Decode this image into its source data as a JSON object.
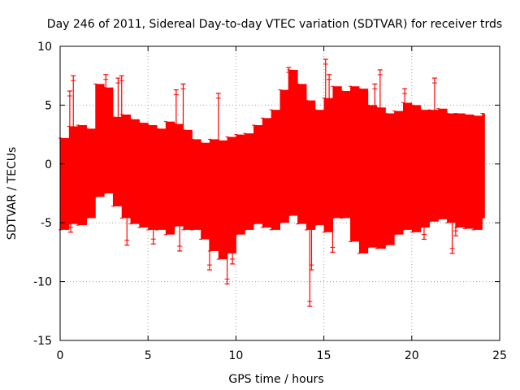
{
  "chart_data": {
    "type": "scatter",
    "title": "Day 246 of 2011, Sidereal Day-to-day VTEC variation (SDTVAR) for receiver trds",
    "xlabel": "GPS time / hours",
    "ylabel": "SDTVAR / TECUs",
    "xlim": [
      0,
      25
    ],
    "ylim": [
      -15,
      10
    ],
    "xticks": [
      0,
      5,
      10,
      15,
      20,
      25
    ],
    "yticks": [
      -15,
      -10,
      -5,
      0,
      5,
      10
    ],
    "grid": true,
    "series_color": "#ff0000",
    "series": [
      {
        "name": "SDTVAR",
        "marker": "error-bar",
        "x": [
          0.0,
          0.5,
          1.0,
          1.5,
          2.0,
          2.5,
          3.0,
          3.5,
          4.0,
          4.5,
          5.0,
          5.5,
          6.0,
          6.5,
          7.0,
          7.5,
          8.0,
          8.5,
          9.0,
          9.5,
          10.0,
          10.5,
          11.0,
          11.5,
          12.0,
          12.5,
          13.0,
          13.5,
          14.0,
          14.5,
          15.0,
          15.5,
          16.0,
          16.5,
          17.0,
          17.5,
          18.0,
          18.5,
          19.0,
          19.5,
          20.0,
          20.5,
          21.0,
          21.5,
          22.0,
          22.5,
          23.0,
          23.5,
          24.0
        ],
        "upper": [
          2.2,
          3.2,
          3.3,
          3.0,
          6.8,
          6.5,
          4.0,
          4.2,
          3.8,
          3.5,
          3.3,
          3.0,
          3.6,
          3.4,
          2.9,
          2.1,
          1.8,
          2.1,
          2.0,
          2.3,
          2.5,
          2.6,
          3.3,
          3.9,
          4.6,
          6.3,
          8.0,
          6.8,
          5.4,
          4.6,
          5.6,
          6.6,
          6.2,
          6.6,
          6.4,
          5.0,
          4.8,
          4.3,
          4.5,
          5.2,
          5.0,
          4.6,
          4.6,
          4.7,
          4.3,
          4.3,
          4.2,
          4.1,
          4.3
        ],
        "lower": [
          -5.6,
          -5.1,
          -5.2,
          -4.6,
          -2.8,
          -2.5,
          -3.6,
          -4.6,
          -5.1,
          -5.4,
          -5.6,
          -5.6,
          -6.0,
          -5.3,
          -5.6,
          -5.6,
          -6.4,
          -7.4,
          -8.1,
          -7.6,
          -6.0,
          -5.6,
          -5.1,
          -5.4,
          -5.6,
          -5.0,
          -4.4,
          -5.1,
          -5.6,
          -5.2,
          -5.8,
          -4.6,
          -4.6,
          -6.6,
          -7.6,
          -7.1,
          -7.2,
          -6.9,
          -6.0,
          -5.6,
          -5.8,
          -5.4,
          -4.9,
          -4.7,
          -5.0,
          -5.4,
          -5.5,
          -5.6,
          -4.6
        ],
        "spikes": [
          {
            "x": 0.55,
            "y": 6.2
          },
          {
            "x": 0.6,
            "y": -5.8
          },
          {
            "x": 0.75,
            "y": 7.5
          },
          {
            "x": 2.6,
            "y": 7.6
          },
          {
            "x": 3.3,
            "y": 7.3
          },
          {
            "x": 3.5,
            "y": 7.5
          },
          {
            "x": 3.8,
            "y": -6.9
          },
          {
            "x": 5.3,
            "y": -6.8
          },
          {
            "x": 6.6,
            "y": 6.3
          },
          {
            "x": 7.0,
            "y": 6.8
          },
          {
            "x": 6.8,
            "y": -7.4
          },
          {
            "x": 9.0,
            "y": 6.0
          },
          {
            "x": 8.5,
            "y": -9.0
          },
          {
            "x": 9.5,
            "y": -10.2
          },
          {
            "x": 9.8,
            "y": -8.5
          },
          {
            "x": 13.0,
            "y": 8.2
          },
          {
            "x": 14.2,
            "y": -12.1
          },
          {
            "x": 14.3,
            "y": -9.0
          },
          {
            "x": 15.1,
            "y": 8.9
          },
          {
            "x": 15.3,
            "y": 7.6
          },
          {
            "x": 15.5,
            "y": -7.5
          },
          {
            "x": 18.2,
            "y": 8.0
          },
          {
            "x": 17.9,
            "y": 6.8
          },
          {
            "x": 19.6,
            "y": 6.4
          },
          {
            "x": 20.7,
            "y": -6.4
          },
          {
            "x": 21.3,
            "y": 7.3
          },
          {
            "x": 22.3,
            "y": -7.6
          },
          {
            "x": 22.5,
            "y": -6.1
          }
        ]
      }
    ]
  }
}
